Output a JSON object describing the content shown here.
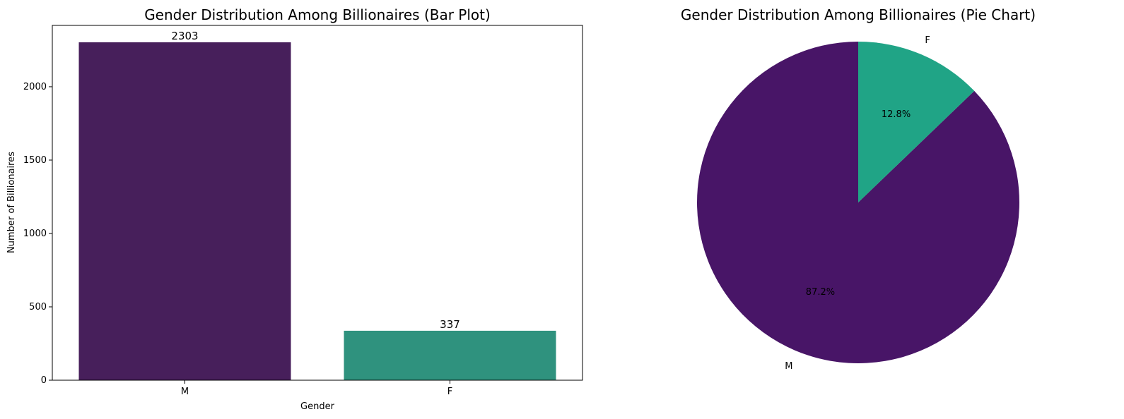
{
  "chart_data": [
    {
      "type": "bar",
      "title": "Gender Distribution Among Billionaires (Bar Plot)",
      "xlabel": "Gender",
      "ylabel": "Number of Billionaires",
      "categories": [
        "M",
        "F"
      ],
      "values": [
        2303,
        337
      ],
      "data_labels": [
        "2303",
        "337"
      ],
      "colors": [
        "#471f5b",
        "#2f927e"
      ],
      "ylim": [
        0,
        2418
      ],
      "yticks": [
        0,
        500,
        1000,
        1500,
        2000
      ],
      "ytick_labels": [
        "0",
        "500",
        "1000",
        "1500",
        "2000"
      ],
      "grid": false,
      "legend": "none"
    },
    {
      "type": "pie",
      "title": "Gender Distribution Among Billionaires (Pie Chart)",
      "labels": [
        "M",
        "F"
      ],
      "values": [
        87.2,
        12.8
      ],
      "pct_labels": [
        "87.2%",
        "12.8%"
      ],
      "colors": [
        "#481567",
        "#20a486"
      ],
      "start_angle_deg": 90,
      "direction": "counterclockwise",
      "legend": "none"
    }
  ]
}
